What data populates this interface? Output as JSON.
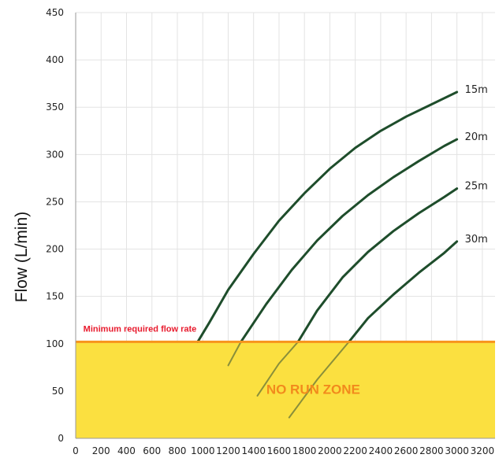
{
  "chart_data": {
    "type": "line",
    "title": "",
    "xlabel": "",
    "ylabel": "Flow (L/min)",
    "xlim": [
      0,
      3300
    ],
    "ylim": [
      0,
      450
    ],
    "x_ticks": [
      0,
      200,
      400,
      600,
      800,
      1000,
      1200,
      1400,
      1600,
      1800,
      2000,
      2200,
      2400,
      2600,
      2800,
      3000,
      3200
    ],
    "y_ticks": [
      0,
      50,
      100,
      150,
      200,
      250,
      300,
      350,
      400,
      450
    ],
    "grid": true,
    "threshold": {
      "value": 102,
      "label": "Minimum required flow rate",
      "color": "#f7941d",
      "label_color": "#e8192c"
    },
    "zone": {
      "label": "NO RUN ZONE",
      "fill": "#fbe040",
      "label_color": "#f28a1c",
      "label_at": [
        1500,
        47
      ]
    },
    "line_color": "#1e4d2b",
    "faded_line_color": "#8a8f3a",
    "series": [
      {
        "name": "15m",
        "x": [
          960,
          1050,
          1200,
          1400,
          1600,
          1800,
          2000,
          2200,
          2400,
          2600,
          2800,
          3000
        ],
        "y": [
          102,
          122,
          157,
          195,
          230,
          259,
          285,
          307,
          325,
          340,
          353,
          366
        ],
        "visible_from": 960
      },
      {
        "name": "20m",
        "x": [
          1200,
          1300,
          1500,
          1700,
          1900,
          2100,
          2300,
          2500,
          2700,
          2900,
          3000
        ],
        "y": [
          77,
          102,
          142,
          178,
          209,
          235,
          257,
          276,
          293,
          309,
          316
        ],
        "visible_from": 1300
      },
      {
        "name": "25m",
        "x": [
          1430,
          1600,
          1750,
          1900,
          2100,
          2300,
          2500,
          2700,
          2900,
          3000
        ],
        "y": [
          45,
          79,
          102,
          135,
          170,
          197,
          219,
          238,
          255,
          264
        ],
        "visible_from": 1750
      },
      {
        "name": "30m",
        "x": [
          1680,
          1900,
          2150,
          2300,
          2500,
          2700,
          2900,
          3000
        ],
        "y": [
          22,
          62,
          102,
          127,
          152,
          175,
          196,
          208
        ],
        "visible_from": 2150
      }
    ]
  }
}
